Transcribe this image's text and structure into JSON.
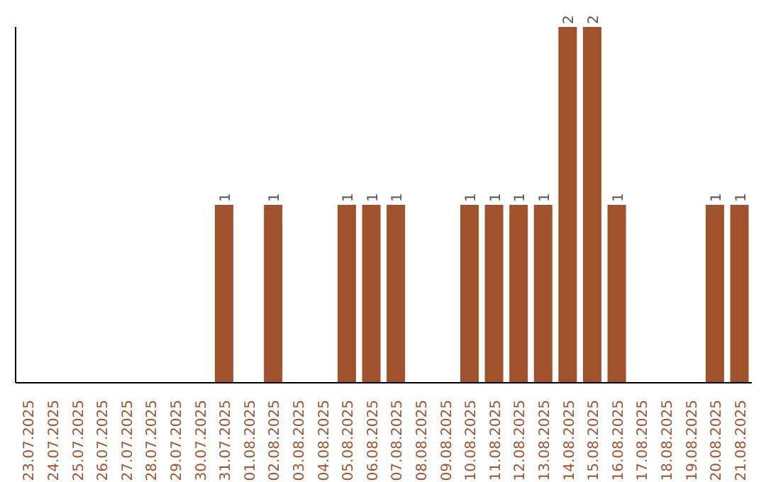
{
  "chart_data": {
    "type": "bar",
    "categories": [
      "23.07.2025",
      "24.07.2025",
      "25.07.2025",
      "26.07.2025",
      "27.07.2025",
      "28.07.2025",
      "29.07.2025",
      "30.07.2025",
      "31.07.2025",
      "01.08.2025",
      "02.08.2025",
      "03.08.2025",
      "04.08.2025",
      "05.08.2025",
      "06.08.2025",
      "07.08.2025",
      "08.08.2025",
      "09.08.2025",
      "10.08.2025",
      "11.08.2025",
      "12.08.2025",
      "13.08.2025",
      "14.08.2025",
      "15.08.2025",
      "16.08.2025",
      "17.08.2025",
      "18.08.2025",
      "19.08.2025",
      "20.08.2025",
      "21.08.2025"
    ],
    "values": [
      0,
      0,
      0,
      0,
      0,
      0,
      0,
      0,
      1,
      0,
      1,
      0,
      0,
      1,
      1,
      1,
      0,
      0,
      1,
      1,
      1,
      1,
      2,
      2,
      1,
      0,
      0,
      0,
      1,
      1
    ],
    "value_labels": [
      null,
      null,
      null,
      null,
      null,
      null,
      null,
      null,
      "1",
      null,
      "1",
      null,
      null,
      "1",
      "1",
      "1",
      null,
      null,
      "1",
      "1",
      "1",
      "1",
      "2",
      "2",
      "1",
      null,
      null,
      null,
      "1",
      "1"
    ],
    "color": "#a0522d"
  }
}
